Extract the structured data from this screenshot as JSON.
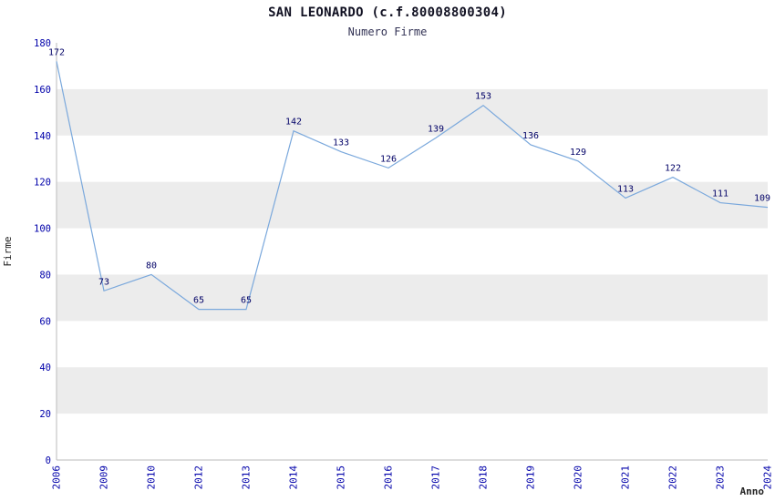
{
  "title": "SAN LEONARDO (c.f.80008800304)",
  "subtitle": "Numero Firme",
  "chart_data": {
    "type": "line",
    "title": "SAN LEONARDO (c.f.80008800304)",
    "subtitle": "Numero Firme",
    "xlabel": "Anno",
    "ylabel": "Firme",
    "categories": [
      "2006",
      "2009",
      "2010",
      "2012",
      "2013",
      "2014",
      "2015",
      "2016",
      "2017",
      "2018",
      "2019",
      "2020",
      "2021",
      "2022",
      "2023",
      "2024"
    ],
    "values": [
      172,
      73,
      80,
      65,
      65,
      142,
      133,
      126,
      139,
      153,
      136,
      129,
      113,
      122,
      111,
      109
    ],
    "ylim": [
      0,
      180
    ],
    "y_ticks": [
      0,
      20,
      40,
      60,
      80,
      100,
      120,
      140,
      160,
      180
    ],
    "bands": [
      [
        20,
        40
      ],
      [
        60,
        80
      ],
      [
        100,
        120
      ],
      [
        140,
        160
      ]
    ],
    "grid": false,
    "legend": "none",
    "colors": {
      "line": "#7aa8dc",
      "band": "#ececec",
      "axis": "#bbbbbb",
      "tick_text": "#0000aa",
      "point_label": "#000066",
      "axis_title": "#222222"
    }
  }
}
